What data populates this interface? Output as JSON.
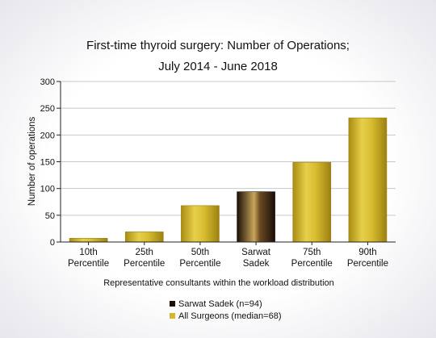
{
  "chart_data": {
    "type": "bar",
    "title_line1": "First-time thyroid surgery: Number of Operations;",
    "title_line2": "July 2014 - June 2018",
    "xlabel": "Representative consultants within the workload distribution",
    "ylabel": "Number of operations",
    "ylim": [
      0,
      300
    ],
    "yticks": [
      0,
      50,
      100,
      150,
      200,
      250,
      300
    ],
    "categories": [
      [
        "10th",
        "Percentile"
      ],
      [
        "25th",
        "Percentile"
      ],
      [
        "50th",
        "Percentile"
      ],
      [
        "Sarwat",
        "Sadek"
      ],
      [
        "75th",
        "Percentile"
      ],
      [
        "90th",
        "Percentile"
      ]
    ],
    "values": [
      7,
      19,
      68,
      94,
      149,
      232
    ],
    "highlight_index": 3,
    "colors": {
      "gold": "#d9bf2e",
      "dark": "#2a1a10"
    },
    "legend": [
      {
        "label": "Sarwat Sadek (n=94)",
        "color": "#1a1008"
      },
      {
        "label": "All Surgeons (median=68)",
        "color": "#d4b72a"
      }
    ],
    "grid": true,
    "legend_position": "bottom-center"
  }
}
